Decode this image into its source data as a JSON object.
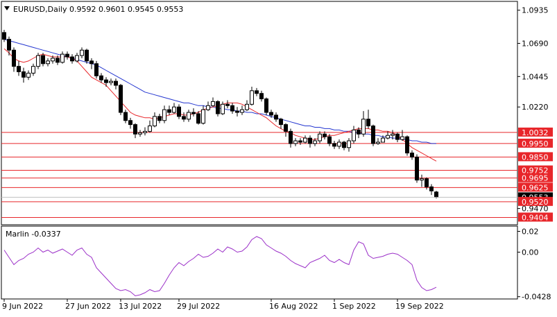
{
  "header": {
    "symbol_line": "EURUSD,Daily  0.9592 0.9601 0.9545 0.9553"
  },
  "indicator": {
    "label": "Marlin -0.0337",
    "axis_ticks": [
      "0.02",
      "0.00",
      "-0.0428"
    ],
    "line_color": "#9b30c8"
  },
  "x_axis": {
    "labels": [
      "9 Jun 2022",
      "27 Jun 2022",
      "13 Jul 2022",
      "29 Jul 2022",
      "16 Aug 2022",
      "1 Sep 2022",
      "19 Sep 2022"
    ]
  },
  "chart_data": {
    "type": "candlestick",
    "ylim": [
      0.935,
      1.1
    ],
    "y_ticks": [
      "1.0935",
      "1.0690",
      "1.0445",
      "1.0220",
      "0.9470"
    ],
    "current_price": "0.9553",
    "levels": [
      {
        "label": "1.0032",
        "value": 1.0032
      },
      {
        "label": "0.9950",
        "value": 0.995
      },
      {
        "label": "0.9850",
        "value": 0.985
      },
      {
        "label": "0.9752",
        "value": 0.9752
      },
      {
        "label": "0.9695",
        "value": 0.9695
      },
      {
        "label": "0.9625",
        "value": 0.9625
      },
      {
        "label": "0.9520",
        "value": 0.952
      },
      {
        "label": "0.9404",
        "value": 0.9404
      }
    ],
    "level_color": "#e8262a",
    "bull_color": "#ffffff",
    "bear_color": "#000000",
    "ma_fast_color": "#e8262a",
    "ma_slow_color": "#2436d0",
    "closes": [
      1.072,
      1.064,
      1.052,
      1.048,
      1.044,
      1.047,
      1.052,
      1.06,
      1.054,
      1.056,
      1.058,
      1.055,
      1.061,
      1.059,
      1.056,
      1.06,
      1.064,
      1.056,
      1.054,
      1.045,
      1.042,
      1.04,
      1.041,
      1.038,
      1.018,
      1.012,
      1.009,
      1.002,
      1.003,
      1.004,
      1.008,
      1.015,
      1.012,
      1.02,
      1.018,
      1.022,
      1.015,
      1.013,
      1.018,
      1.017,
      1.01,
      1.02,
      1.023,
      1.026,
      1.017,
      1.024,
      1.023,
      1.019,
      1.018,
      1.02,
      1.024,
      1.034,
      1.032,
      1.028,
      1.018,
      1.016,
      1.013,
      1.009,
      1.004,
      0.995,
      0.997,
      0.996,
      0.999,
      0.995,
      0.997,
      1.002,
      1.0,
      0.995,
      0.993,
      0.996,
      0.992,
      0.997,
      1.005,
      1.002,
      1.013,
      1.008,
      0.995,
      0.996,
      0.999,
      1.001,
      1.002,
      0.998,
      1.0,
      0.988,
      0.985,
      0.968,
      0.969,
      0.963,
      0.96,
      0.9553
    ],
    "opens": [
      1.077,
      1.072,
      1.064,
      1.052,
      1.048,
      1.044,
      1.047,
      1.052,
      1.06,
      1.054,
      1.056,
      1.058,
      1.055,
      1.061,
      1.059,
      1.056,
      1.06,
      1.064,
      1.056,
      1.054,
      1.045,
      1.042,
      1.04,
      1.041,
      1.038,
      1.018,
      1.012,
      1.009,
      1.002,
      1.003,
      1.004,
      1.008,
      1.015,
      1.012,
      1.02,
      1.018,
      1.022,
      1.015,
      1.013,
      1.018,
      1.017,
      1.01,
      1.02,
      1.023,
      1.026,
      1.017,
      1.024,
      1.023,
      1.019,
      1.018,
      1.02,
      1.024,
      1.034,
      1.032,
      1.028,
      1.018,
      1.016,
      1.013,
      1.009,
      1.004,
      0.995,
      0.997,
      0.996,
      0.999,
      0.995,
      0.997,
      1.002,
      1.0,
      0.995,
      0.993,
      0.996,
      0.992,
      0.997,
      1.005,
      1.002,
      1.013,
      1.008,
      0.995,
      0.996,
      0.999,
      1.001,
      1.002,
      0.998,
      1.0,
      0.988,
      0.985,
      0.968,
      0.969,
      0.963,
      0.9592
    ],
    "highs": [
      1.079,
      1.074,
      1.066,
      1.056,
      1.051,
      1.049,
      1.054,
      1.062,
      1.062,
      1.058,
      1.06,
      1.06,
      1.063,
      1.063,
      1.061,
      1.062,
      1.066,
      1.065,
      1.058,
      1.056,
      1.047,
      1.044,
      1.043,
      1.043,
      1.039,
      1.02,
      1.014,
      1.01,
      1.005,
      1.007,
      1.012,
      1.018,
      1.017,
      1.023,
      1.023,
      1.025,
      1.024,
      1.018,
      1.02,
      1.021,
      1.019,
      1.023,
      1.026,
      1.029,
      1.027,
      1.026,
      1.027,
      1.025,
      1.022,
      1.023,
      1.027,
      1.037,
      1.036,
      1.034,
      1.029,
      1.02,
      1.018,
      1.014,
      1.01,
      1.006,
      0.999,
      0.999,
      1.001,
      1.001,
      0.999,
      1.004,
      1.004,
      1.002,
      0.997,
      0.998,
      0.997,
      0.999,
      1.008,
      1.007,
      1.019,
      1.02,
      1.009,
      0.999,
      1.001,
      1.004,
      1.005,
      1.003,
      1.005,
      1.001,
      0.99,
      0.987,
      0.972,
      0.97,
      0.965,
      0.9601
    ],
    "lows": [
      1.07,
      1.06,
      1.048,
      1.045,
      1.04,
      1.042,
      1.045,
      1.05,
      1.052,
      1.052,
      1.054,
      1.053,
      1.054,
      1.057,
      1.054,
      1.055,
      1.058,
      1.054,
      1.05,
      1.043,
      1.04,
      1.037,
      1.038,
      1.035,
      1.016,
      1.01,
      1.006,
      0.999,
      1.0,
      1.001,
      1.003,
      1.007,
      1.01,
      1.01,
      1.016,
      1.017,
      1.013,
      1.011,
      1.011,
      1.015,
      1.009,
      1.009,
      1.019,
      1.022,
      1.015,
      1.016,
      1.021,
      1.017,
      1.015,
      1.016,
      1.019,
      1.023,
      1.03,
      1.026,
      1.016,
      1.014,
      1.011,
      1.006,
      1.0,
      0.992,
      0.993,
      0.994,
      0.995,
      0.992,
      0.993,
      0.995,
      0.998,
      0.993,
      0.991,
      0.991,
      0.99,
      0.989,
      0.995,
      0.999,
      1.0,
      1.006,
      0.993,
      0.994,
      0.996,
      0.998,
      0.998,
      0.996,
      0.997,
      0.986,
      0.983,
      0.966,
      0.963,
      0.961,
      0.957,
      0.9545
    ],
    "ma_fast": [
      1.065,
      1.062,
      1.058,
      1.056,
      1.055,
      1.056,
      1.058,
      1.06,
      1.061,
      1.06,
      1.059,
      1.059,
      1.059,
      1.059,
      1.058,
      1.056,
      1.052,
      1.048,
      1.044,
      1.042,
      1.04,
      1.038,
      1.034,
      1.03,
      1.026,
      1.022,
      1.018,
      1.016,
      1.015,
      1.014,
      1.014,
      1.013,
      1.014,
      1.015,
      1.016,
      1.017,
      1.017,
      1.016,
      1.016,
      1.017,
      1.018,
      1.02,
      1.021,
      1.022,
      1.023,
      1.024,
      1.025,
      1.025,
      1.025,
      1.024,
      1.022,
      1.02,
      1.018,
      1.016,
      1.014,
      1.011,
      1.008,
      1.006,
      1.004,
      1.003,
      1.001,
      1.0,
      0.999,
      0.998,
      0.998,
      0.999,
      1.0,
      1.001,
      1.001,
      1.002,
      1.003,
      1.004,
      1.005,
      1.006,
      1.006,
      1.006,
      1.005,
      1.005,
      1.004,
      1.004,
      1.003,
      1.001,
      0.998,
      0.995,
      0.992,
      0.99,
      0.988,
      0.986,
      0.984,
      0.982
    ],
    "ma_slow": [
      1.072,
      1.071,
      1.07,
      1.069,
      1.068,
      1.067,
      1.066,
      1.065,
      1.064,
      1.063,
      1.062,
      1.061,
      1.06,
      1.059,
      1.058,
      1.057,
      1.056,
      1.055,
      1.054,
      1.053,
      1.051,
      1.049,
      1.047,
      1.045,
      1.043,
      1.041,
      1.039,
      1.037,
      1.035,
      1.033,
      1.032,
      1.031,
      1.03,
      1.029,
      1.028,
      1.027,
      1.026,
      1.025,
      1.025,
      1.024,
      1.023,
      1.023,
      1.022,
      1.022,
      1.021,
      1.021,
      1.02,
      1.02,
      1.019,
      1.019,
      1.018,
      1.018,
      1.017,
      1.017,
      1.016,
      1.015,
      1.014,
      1.013,
      1.012,
      1.011,
      1.01,
      1.009,
      1.008,
      1.008,
      1.007,
      1.007,
      1.006,
      1.006,
      1.005,
      1.005,
      1.004,
      1.004,
      1.003,
      1.003,
      1.002,
      1.002,
      1.001,
      1.001,
      1.0,
      1.0,
      0.999,
      0.999,
      0.998,
      0.998,
      0.997,
      0.997,
      0.996,
      0.996,
      0.995,
      0.995
    ],
    "indicator_values": [
      0.002,
      -0.005,
      -0.012,
      -0.008,
      -0.006,
      -0.002,
      0.0,
      0.004,
      0.0,
      0.002,
      -0.001,
      0.001,
      0.003,
      0.0,
      -0.003,
      0.002,
      0.004,
      -0.002,
      -0.005,
      -0.015,
      -0.02,
      -0.025,
      -0.03,
      -0.035,
      -0.037,
      -0.036,
      -0.038,
      -0.042,
      -0.041,
      -0.039,
      -0.036,
      -0.038,
      -0.037,
      -0.03,
      -0.022,
      -0.015,
      -0.01,
      -0.013,
      -0.009,
      -0.006,
      -0.002,
      -0.005,
      -0.004,
      -0.001,
      0.003,
      0.0,
      0.005,
      0.003,
      0.0,
      0.001,
      0.005,
      0.012,
      0.015,
      0.013,
      0.007,
      0.004,
      0.001,
      -0.001,
      -0.004,
      -0.008,
      -0.011,
      -0.013,
      -0.015,
      -0.01,
      -0.008,
      -0.006,
      -0.003,
      -0.008,
      -0.01,
      -0.007,
      -0.01,
      -0.012,
      0.002,
      0.01,
      0.008,
      -0.003,
      -0.006,
      -0.005,
      -0.004,
      -0.002,
      -0.001,
      -0.002,
      -0.005,
      -0.008,
      -0.012,
      -0.027,
      -0.034,
      -0.037,
      -0.036,
      -0.0337
    ],
    "indicator_ylim": [
      -0.045,
      0.025
    ]
  }
}
